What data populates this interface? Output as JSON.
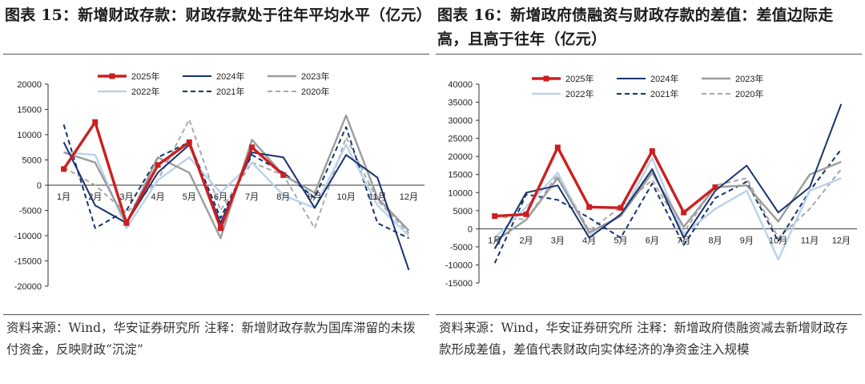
{
  "left": {
    "title": "图表 15：新增财政存款：财政存款处于往年平均水平（亿元）",
    "source": "资料来源：Wind，华安证券研究所 注释：新增财政存款为国库滞留的未拨付资金，反映财政“沉淀”"
  },
  "right": {
    "title": "图表 16：新增政府债融资与财政存款的差值：差值边际走高，且高于往年（亿元）",
    "source": "资料来源：Wind，华安证券研究所 注释：新增政府债融资减去新增财政存款形成差值，差值代表财政向实体经济的净资金注入规模"
  },
  "styles": {
    "2025年": {
      "color": "#cc1f1f",
      "dash": "",
      "width": 3.4,
      "marker": true
    },
    "2024年": {
      "color": "#17326e",
      "dash": "",
      "width": 2
    },
    "2023年": {
      "color": "#9c9c9c",
      "dash": "",
      "width": 2.4
    },
    "2022年": {
      "color": "#b9d2ea",
      "dash": "",
      "width": 2.4
    },
    "2021年": {
      "color": "#17326e",
      "dash": "6,4",
      "width": 2
    },
    "2020年": {
      "color": "#a9a9a9",
      "dash": "6,4",
      "width": 2
    }
  },
  "chart_data": [
    {
      "type": "line",
      "categories": [
        "1月",
        "2月",
        "3月",
        "4月",
        "5月",
        "6月",
        "7月",
        "8月",
        "9月",
        "10月",
        "11月",
        "12月"
      ],
      "ylim": [
        -20000,
        20000
      ],
      "yticks": [
        -20000,
        -15000,
        -10000,
        -5000,
        0,
        5000,
        10000,
        15000,
        20000
      ],
      "legend": [
        "2025年",
        "2024年",
        "2023年",
        "2022年",
        "2021年",
        "2020年"
      ],
      "series": [
        {
          "name": "2020年",
          "values": [
            3500,
            0,
            -5500,
            1000,
            13000,
            -5000,
            4500,
            2000,
            -8500,
            9500,
            -3000,
            -9500
          ]
        },
        {
          "name": "2021年",
          "values": [
            12000,
            -8500,
            -5000,
            5500,
            8500,
            -6500,
            6000,
            2500,
            -2500,
            11500,
            -7500,
            -10500
          ]
        },
        {
          "name": "2022年",
          "values": [
            6500,
            6000,
            -8500,
            1000,
            5500,
            -1500,
            4500,
            -2000,
            -4500,
            8000,
            -4000,
            -10000
          ]
        },
        {
          "name": "2023年",
          "values": [
            6500,
            4500,
            -7500,
            5500,
            2500,
            -10500,
            9000,
            2000,
            -1500,
            13800,
            -2500,
            -9000
          ]
        },
        {
          "name": "2024年",
          "values": [
            8500,
            -4000,
            -7500,
            2500,
            8000,
            -7500,
            6500,
            5500,
            -4500,
            6000,
            1500,
            -16800
          ]
        },
        {
          "name": "2025年",
          "values": [
            3200,
            12500,
            -7500,
            4000,
            8500,
            -8500,
            7500,
            2000,
            null,
            null,
            null,
            null
          ]
        }
      ]
    },
    {
      "type": "line",
      "categories": [
        "1月",
        "2月",
        "3月",
        "4月",
        "5月",
        "6月",
        "7月",
        "8月",
        "9月",
        "10月",
        "11月",
        "12月"
      ],
      "ylim": [
        -15000,
        40000
      ],
      "yticks": [
        -15000,
        -10000,
        -5000,
        0,
        5000,
        10000,
        15000,
        20000,
        25000,
        30000,
        35000,
        40000
      ],
      "legend": [
        "2025年",
        "2024年",
        "2023年",
        "2022年",
        "2021年",
        "2020年"
      ],
      "series": [
        {
          "name": "2020年",
          "values": [
            3500,
            2500,
            15000,
            -500,
            6000,
            13500,
            -1000,
            12000,
            14000,
            -2500,
            5500,
            16500
          ]
        },
        {
          "name": "2021年",
          "values": [
            -9500,
            9500,
            8000,
            3000,
            -2500,
            12500,
            -4500,
            8500,
            13000,
            -3500,
            10500,
            22000
          ]
        },
        {
          "name": "2022年",
          "values": [
            -2500,
            6000,
            15500,
            -1500,
            3500,
            19500,
            -1500,
            5500,
            10500,
            -8500,
            10500,
            14000
          ]
        },
        {
          "name": "2023年",
          "values": [
            -3500,
            2500,
            14000,
            -1000,
            3500,
            15500,
            500,
            11500,
            12000,
            2000,
            15000,
            18500
          ]
        },
        {
          "name": "2024年",
          "values": [
            -5500,
            10000,
            12000,
            -2500,
            4000,
            16500,
            -2500,
            10500,
            17500,
            4500,
            11500,
            34500
          ]
        },
        {
          "name": "2025年",
          "values": [
            3500,
            4000,
            22500,
            6000,
            5800,
            21500,
            4500,
            11500,
            null,
            null,
            null,
            null
          ]
        }
      ]
    }
  ]
}
